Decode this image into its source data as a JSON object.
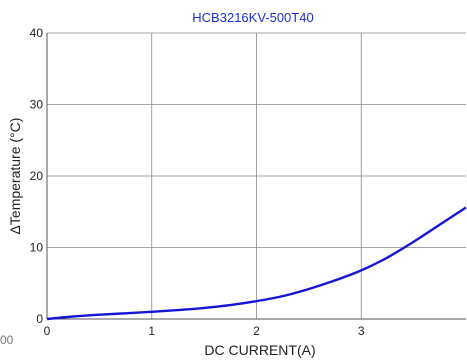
{
  "colors": {
    "title": "#1a2fd8",
    "series": "#1515d6",
    "grid": "#888888",
    "frame": "#555555"
  },
  "left_edge_text": "00",
  "chart_data": {
    "type": "line",
    "title": "HCB3216KV-500T40",
    "xlabel": "DC CURRENT(A)",
    "ylabel": "ΔTemperature (°C)",
    "xlim": [
      0,
      4
    ],
    "ylim": [
      0,
      40
    ],
    "x_ticks": [
      0,
      1,
      2,
      3
    ],
    "y_ticks": [
      0,
      10,
      20,
      30,
      40
    ],
    "grid": true,
    "series": [
      {
        "x": [
          0,
          0.25,
          0.5,
          0.75,
          1.0,
          1.25,
          1.5,
          1.75,
          2.0,
          2.25,
          2.5,
          2.75,
          3.0,
          3.25,
          3.5,
          3.75,
          4.0
        ],
        "y": [
          0,
          0.35,
          0.6,
          0.8,
          1.0,
          1.25,
          1.55,
          1.95,
          2.5,
          3.2,
          4.2,
          5.4,
          6.8,
          8.6,
          10.8,
          13.2,
          15.6
        ]
      }
    ]
  }
}
